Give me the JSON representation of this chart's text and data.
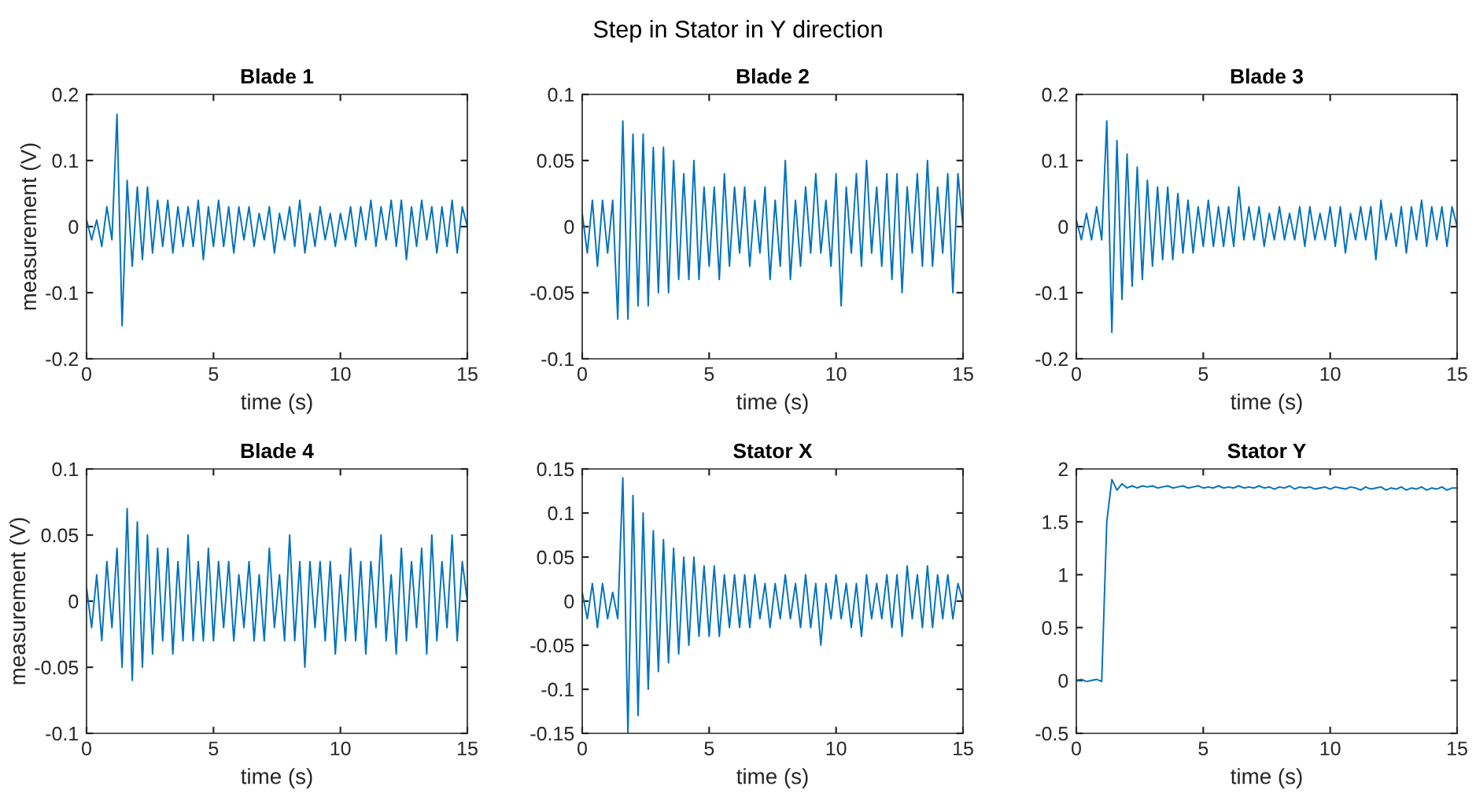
{
  "chart_data": [
    {
      "type": "line",
      "title": "Blade 1",
      "annotations": [
        "Step in Stator in Y direction"
      ],
      "xlabel": "time (s)",
      "ylabel": "measurement (V)",
      "xlim": [
        0,
        15
      ],
      "xticks": [
        0,
        5,
        10,
        15
      ],
      "ylim": [
        -0.2,
        0.2
      ],
      "yticks": [
        -0.2,
        -0.1,
        0,
        0.1,
        0.2
      ],
      "x": [
        0,
        0.2,
        0.4,
        0.6,
        0.8,
        1.0,
        1.2,
        1.4,
        1.6,
        1.8,
        2.0,
        2.2,
        2.4,
        2.6,
        2.8,
        3.0,
        3.2,
        3.4,
        3.6,
        3.8,
        4.0,
        4.2,
        4.4,
        4.6,
        4.8,
        5.0,
        5.2,
        5.4,
        5.6,
        5.8,
        6.0,
        6.2,
        6.4,
        6.6,
        6.8,
        7.0,
        7.2,
        7.4,
        7.6,
        7.8,
        8.0,
        8.2,
        8.4,
        8.6,
        8.8,
        9.0,
        9.2,
        9.4,
        9.6,
        9.8,
        10.0,
        10.2,
        10.4,
        10.6,
        10.8,
        11.0,
        11.2,
        11.4,
        11.6,
        11.8,
        12.0,
        12.2,
        12.4,
        12.6,
        12.8,
        13.0,
        13.2,
        13.4,
        13.6,
        13.8,
        14.0,
        14.2,
        14.4,
        14.6,
        14.8,
        15.0
      ],
      "series": [
        {
          "color": "#0072bd",
          "values": [
            0.01,
            -0.02,
            0.01,
            -0.03,
            0.03,
            -0.02,
            0.17,
            -0.15,
            0.07,
            -0.06,
            0.06,
            -0.05,
            0.06,
            -0.04,
            0.04,
            -0.03,
            0.04,
            -0.04,
            0.03,
            -0.03,
            0.03,
            -0.03,
            0.04,
            -0.05,
            0.03,
            -0.03,
            0.04,
            -0.03,
            0.03,
            -0.04,
            0.03,
            -0.02,
            0.03,
            -0.03,
            0.02,
            -0.02,
            0.03,
            -0.04,
            0.02,
            -0.02,
            0.03,
            -0.03,
            0.04,
            -0.04,
            0.02,
            -0.03,
            0.03,
            -0.02,
            0.02,
            -0.03,
            0.02,
            -0.02,
            0.03,
            -0.03,
            0.03,
            -0.02,
            0.04,
            -0.03,
            0.03,
            -0.02,
            0.04,
            -0.03,
            0.04,
            -0.05,
            0.03,
            -0.03,
            0.04,
            -0.02,
            0.03,
            -0.04,
            0.03,
            -0.03,
            0.04,
            -0.04,
            0.03,
            0.0
          ]
        }
      ]
    },
    {
      "type": "line",
      "title": "Blade 2",
      "xlabel": "time (s)",
      "xlim": [
        0,
        15
      ],
      "xticks": [
        0,
        5,
        10,
        15
      ],
      "ylim": [
        -0.1,
        0.1
      ],
      "yticks": [
        -0.1,
        -0.05,
        0,
        0.05,
        0.1
      ],
      "x": [
        0,
        0.2,
        0.4,
        0.6,
        0.8,
        1.0,
        1.2,
        1.4,
        1.6,
        1.8,
        2.0,
        2.2,
        2.4,
        2.6,
        2.8,
        3.0,
        3.2,
        3.4,
        3.6,
        3.8,
        4.0,
        4.2,
        4.4,
        4.6,
        4.8,
        5.0,
        5.2,
        5.4,
        5.6,
        5.8,
        6.0,
        6.2,
        6.4,
        6.6,
        6.8,
        7.0,
        7.2,
        7.4,
        7.6,
        7.8,
        8.0,
        8.2,
        8.4,
        8.6,
        8.8,
        9.0,
        9.2,
        9.4,
        9.6,
        9.8,
        10.0,
        10.2,
        10.4,
        10.6,
        10.8,
        11.0,
        11.2,
        11.4,
        11.6,
        11.8,
        12.0,
        12.2,
        12.4,
        12.6,
        12.8,
        13.0,
        13.2,
        13.4,
        13.6,
        13.8,
        14.0,
        14.2,
        14.4,
        14.6,
        14.8,
        15.0
      ],
      "series": [
        {
          "color": "#0072bd",
          "values": [
            0.01,
            -0.02,
            0.02,
            -0.03,
            0.02,
            -0.02,
            0.02,
            -0.07,
            0.08,
            -0.07,
            0.07,
            -0.06,
            0.07,
            -0.06,
            0.06,
            -0.05,
            0.06,
            -0.05,
            0.05,
            -0.04,
            0.04,
            -0.04,
            0.05,
            -0.04,
            0.03,
            -0.03,
            0.03,
            -0.04,
            0.04,
            -0.03,
            0.03,
            -0.02,
            0.03,
            -0.03,
            0.02,
            -0.02,
            0.03,
            -0.04,
            0.02,
            -0.03,
            0.05,
            -0.04,
            0.02,
            -0.03,
            0.03,
            -0.02,
            0.04,
            -0.02,
            0.02,
            -0.03,
            0.04,
            -0.06,
            0.03,
            -0.02,
            0.04,
            -0.03,
            0.05,
            -0.02,
            0.03,
            -0.03,
            0.04,
            -0.04,
            0.04,
            -0.05,
            0.03,
            -0.02,
            0.04,
            -0.03,
            0.05,
            -0.03,
            0.03,
            -0.02,
            0.04,
            -0.05,
            0.04,
            0.0
          ]
        }
      ]
    },
    {
      "type": "line",
      "title": "Blade 3",
      "xlabel": "time (s)",
      "xlim": [
        0,
        15
      ],
      "xticks": [
        0,
        5,
        10,
        15
      ],
      "ylim": [
        -0.2,
        0.2
      ],
      "yticks": [
        -0.2,
        -0.1,
        0,
        0.1,
        0.2
      ],
      "x": [
        0,
        0.2,
        0.4,
        0.6,
        0.8,
        1.0,
        1.2,
        1.4,
        1.6,
        1.8,
        2.0,
        2.2,
        2.4,
        2.6,
        2.8,
        3.0,
        3.2,
        3.4,
        3.6,
        3.8,
        4.0,
        4.2,
        4.4,
        4.6,
        4.8,
        5.0,
        5.2,
        5.4,
        5.6,
        5.8,
        6.0,
        6.2,
        6.4,
        6.6,
        6.8,
        7.0,
        7.2,
        7.4,
        7.6,
        7.8,
        8.0,
        8.2,
        8.4,
        8.6,
        8.8,
        9.0,
        9.2,
        9.4,
        9.6,
        9.8,
        10.0,
        10.2,
        10.4,
        10.6,
        10.8,
        11.0,
        11.2,
        11.4,
        11.6,
        11.8,
        12.0,
        12.2,
        12.4,
        12.6,
        12.8,
        13.0,
        13.2,
        13.4,
        13.6,
        13.8,
        14.0,
        14.2,
        14.4,
        14.6,
        14.8,
        15.0
      ],
      "series": [
        {
          "color": "#0072bd",
          "values": [
            0.01,
            -0.02,
            0.02,
            -0.02,
            0.03,
            -0.02,
            0.16,
            -0.16,
            0.13,
            -0.11,
            0.11,
            -0.09,
            0.09,
            -0.08,
            0.07,
            -0.06,
            0.06,
            -0.05,
            0.06,
            -0.05,
            0.05,
            -0.04,
            0.04,
            -0.04,
            0.03,
            -0.03,
            0.04,
            -0.03,
            0.03,
            -0.03,
            0.03,
            -0.03,
            0.06,
            -0.02,
            0.03,
            -0.02,
            0.03,
            -0.03,
            0.02,
            -0.02,
            0.03,
            -0.02,
            0.02,
            -0.02,
            0.03,
            -0.03,
            0.03,
            -0.02,
            0.02,
            -0.02,
            0.03,
            -0.03,
            0.03,
            -0.04,
            0.02,
            -0.02,
            0.03,
            -0.02,
            0.03,
            -0.05,
            0.04,
            -0.02,
            0.02,
            -0.03,
            0.03,
            -0.04,
            0.03,
            -0.02,
            0.04,
            -0.03,
            0.03,
            -0.02,
            0.03,
            -0.03,
            0.03,
            0.0
          ]
        }
      ]
    },
    {
      "type": "line",
      "title": "Blade 4",
      "xlabel": "time (s)",
      "ylabel": "measurement (V)",
      "xlim": [
        0,
        15
      ],
      "xticks": [
        0,
        5,
        10,
        15
      ],
      "ylim": [
        -0.1,
        0.1
      ],
      "yticks": [
        -0.1,
        -0.05,
        0,
        0.05,
        0.1
      ],
      "x": [
        0,
        0.2,
        0.4,
        0.6,
        0.8,
        1.0,
        1.2,
        1.4,
        1.6,
        1.8,
        2.0,
        2.2,
        2.4,
        2.6,
        2.8,
        3.0,
        3.2,
        3.4,
        3.6,
        3.8,
        4.0,
        4.2,
        4.4,
        4.6,
        4.8,
        5.0,
        5.2,
        5.4,
        5.6,
        5.8,
        6.0,
        6.2,
        6.4,
        6.6,
        6.8,
        7.0,
        7.2,
        7.4,
        7.6,
        7.8,
        8.0,
        8.2,
        8.4,
        8.6,
        8.8,
        9.0,
        9.2,
        9.4,
        9.6,
        9.8,
        10.0,
        10.2,
        10.4,
        10.6,
        10.8,
        11.0,
        11.2,
        11.4,
        11.6,
        11.8,
        12.0,
        12.2,
        12.4,
        12.6,
        12.8,
        13.0,
        13.2,
        13.4,
        13.6,
        13.8,
        14.0,
        14.2,
        14.4,
        14.6,
        14.8,
        15.0
      ],
      "series": [
        {
          "color": "#0072bd",
          "values": [
            0.01,
            -0.02,
            0.02,
            -0.03,
            0.03,
            -0.02,
            0.04,
            -0.05,
            0.07,
            -0.06,
            0.06,
            -0.05,
            0.05,
            -0.04,
            0.04,
            -0.03,
            0.04,
            -0.04,
            0.03,
            -0.03,
            0.05,
            -0.03,
            0.03,
            -0.03,
            0.04,
            -0.03,
            0.03,
            -0.02,
            0.03,
            -0.03,
            0.02,
            -0.02,
            0.03,
            -0.03,
            0.02,
            -0.03,
            0.04,
            -0.02,
            0.02,
            -0.03,
            0.05,
            -0.03,
            0.03,
            -0.05,
            0.03,
            -0.02,
            0.03,
            -0.03,
            0.03,
            -0.04,
            0.02,
            -0.03,
            0.04,
            -0.03,
            0.03,
            -0.04,
            0.03,
            -0.02,
            0.05,
            -0.03,
            0.02,
            -0.04,
            0.04,
            -0.03,
            0.03,
            -0.02,
            0.04,
            -0.04,
            0.05,
            -0.03,
            0.03,
            -0.02,
            0.05,
            -0.03,
            0.03,
            0.0
          ]
        }
      ]
    },
    {
      "type": "line",
      "title": "Stator X",
      "xlabel": "time (s)",
      "xlim": [
        0,
        15
      ],
      "xticks": [
        0,
        5,
        10,
        15
      ],
      "ylim": [
        -0.15,
        0.15
      ],
      "yticks": [
        -0.15,
        -0.1,
        -0.05,
        0,
        0.05,
        0.1,
        0.15
      ],
      "x": [
        0,
        0.2,
        0.4,
        0.6,
        0.8,
        1.0,
        1.2,
        1.4,
        1.6,
        1.8,
        2.0,
        2.2,
        2.4,
        2.6,
        2.8,
        3.0,
        3.2,
        3.4,
        3.6,
        3.8,
        4.0,
        4.2,
        4.4,
        4.6,
        4.8,
        5.0,
        5.2,
        5.4,
        5.6,
        5.8,
        6.0,
        6.2,
        6.4,
        6.6,
        6.8,
        7.0,
        7.2,
        7.4,
        7.6,
        7.8,
        8.0,
        8.2,
        8.4,
        8.6,
        8.8,
        9.0,
        9.2,
        9.4,
        9.6,
        9.8,
        10.0,
        10.2,
        10.4,
        10.6,
        10.8,
        11.0,
        11.2,
        11.4,
        11.6,
        11.8,
        12.0,
        12.2,
        12.4,
        12.6,
        12.8,
        13.0,
        13.2,
        13.4,
        13.6,
        13.8,
        14.0,
        14.2,
        14.4,
        14.6,
        14.8,
        15.0
      ],
      "series": [
        {
          "color": "#0072bd",
          "values": [
            0.01,
            -0.02,
            0.02,
            -0.03,
            0.02,
            -0.02,
            0.01,
            -0.02,
            0.14,
            -0.15,
            0.12,
            -0.13,
            0.1,
            -0.1,
            0.08,
            -0.08,
            0.07,
            -0.07,
            0.06,
            -0.06,
            0.05,
            -0.05,
            0.05,
            -0.04,
            0.04,
            -0.04,
            0.04,
            -0.04,
            0.03,
            -0.03,
            0.03,
            -0.03,
            0.03,
            -0.03,
            0.03,
            -0.02,
            0.02,
            -0.03,
            0.02,
            -0.02,
            0.03,
            -0.02,
            0.02,
            -0.03,
            0.03,
            -0.03,
            0.02,
            -0.05,
            0.02,
            -0.02,
            0.03,
            -0.02,
            0.02,
            -0.03,
            0.02,
            -0.04,
            0.03,
            -0.02,
            0.02,
            -0.02,
            0.03,
            -0.03,
            0.03,
            -0.04,
            0.04,
            -0.02,
            0.03,
            -0.03,
            0.04,
            -0.03,
            0.03,
            -0.02,
            0.03,
            -0.02,
            0.02,
            0.0
          ]
        }
      ]
    },
    {
      "type": "line",
      "title": "Stator Y",
      "xlabel": "time (s)",
      "xlim": [
        0,
        15
      ],
      "xticks": [
        0,
        5,
        10,
        15
      ],
      "ylim": [
        -0.5,
        2
      ],
      "yticks": [
        -0.5,
        0,
        0.5,
        1,
        1.5,
        2
      ],
      "x": [
        0,
        0.2,
        0.4,
        0.6,
        0.8,
        1.0,
        1.2,
        1.4,
        1.6,
        1.8,
        2.0,
        2.2,
        2.4,
        2.6,
        2.8,
        3.0,
        3.2,
        3.4,
        3.6,
        3.8,
        4.0,
        4.2,
        4.4,
        4.6,
        4.8,
        5.0,
        5.2,
        5.4,
        5.6,
        5.8,
        6.0,
        6.2,
        6.4,
        6.6,
        6.8,
        7.0,
        7.2,
        7.4,
        7.6,
        7.8,
        8.0,
        8.2,
        8.4,
        8.6,
        8.8,
        9.0,
        9.2,
        9.4,
        9.6,
        9.8,
        10.0,
        10.2,
        10.4,
        10.6,
        10.8,
        11.0,
        11.2,
        11.4,
        11.6,
        11.8,
        12.0,
        12.2,
        12.4,
        12.6,
        12.8,
        13.0,
        13.2,
        13.4,
        13.6,
        13.8,
        14.0,
        14.2,
        14.4,
        14.6,
        14.8,
        15.0
      ],
      "series": [
        {
          "color": "#0072bd",
          "values": [
            0.0,
            0.01,
            -0.01,
            0.0,
            0.01,
            -0.01,
            1.5,
            1.9,
            1.8,
            1.86,
            1.82,
            1.84,
            1.82,
            1.84,
            1.83,
            1.84,
            1.82,
            1.83,
            1.84,
            1.82,
            1.83,
            1.84,
            1.82,
            1.83,
            1.84,
            1.82,
            1.83,
            1.82,
            1.84,
            1.82,
            1.83,
            1.82,
            1.84,
            1.82,
            1.83,
            1.82,
            1.84,
            1.82,
            1.83,
            1.81,
            1.83,
            1.82,
            1.84,
            1.81,
            1.83,
            1.82,
            1.83,
            1.81,
            1.82,
            1.83,
            1.81,
            1.83,
            1.82,
            1.81,
            1.83,
            1.82,
            1.8,
            1.83,
            1.81,
            1.82,
            1.83,
            1.8,
            1.82,
            1.81,
            1.83,
            1.8,
            1.82,
            1.81,
            1.83,
            1.8,
            1.82,
            1.81,
            1.83,
            1.8,
            1.82,
            1.82
          ]
        }
      ]
    }
  ]
}
